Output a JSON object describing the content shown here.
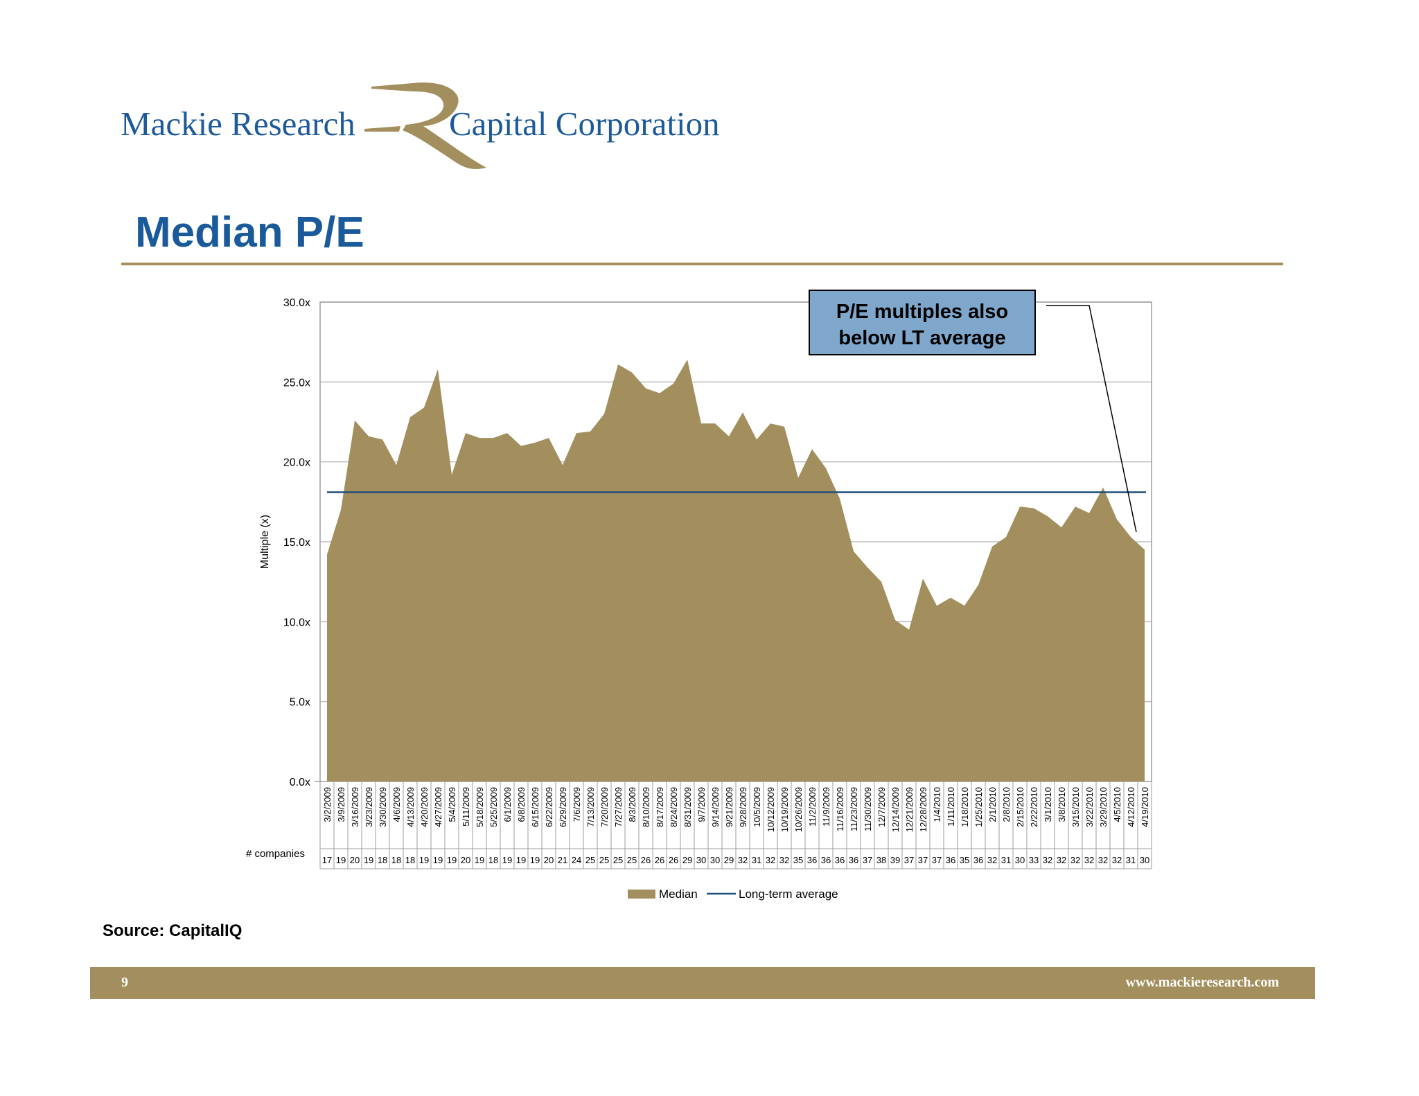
{
  "header": {
    "logo_left": "Mackie Research",
    "logo_right": "Capital Corporation",
    "brand_colors": {
      "text": "#1e5a9a",
      "mark": "#a38f5e"
    }
  },
  "page_title": "Median P/E",
  "source": "Source: CapitalIQ",
  "footer": {
    "page_number": "9",
    "website": "www.mackieresearch.com"
  },
  "chart_data": {
    "type": "area",
    "ylabel": "Multiple (x)",
    "ylim": [
      0,
      30
    ],
    "yticks": [
      "0.0x",
      "5.0x",
      "10.0x",
      "15.0x",
      "20.0x",
      "25.0x",
      "30.0x"
    ],
    "grid": true,
    "legend_position": "bottom",
    "annotation": "P/E multiples also below LT average",
    "companies_label": "# companies",
    "x": [
      "3/2/2009",
      "3/9/2009",
      "3/16/2009",
      "3/23/2009",
      "3/30/2009",
      "4/6/2009",
      "4/13/2009",
      "4/20/2009",
      "4/27/2009",
      "5/4/2009",
      "5/11/2009",
      "5/18/2009",
      "5/25/2009",
      "6/1/2009",
      "6/8/2009",
      "6/15/2009",
      "6/22/2009",
      "6/29/2009",
      "7/6/2009",
      "7/13/2009",
      "7/20/2009",
      "7/27/2009",
      "8/3/2009",
      "8/10/2009",
      "8/17/2009",
      "8/24/2009",
      "8/31/2009",
      "9/7/2009",
      "9/14/2009",
      "9/21/2009",
      "9/28/2009",
      "10/5/2009",
      "10/12/2009",
      "10/19/2009",
      "10/26/2009",
      "11/2/2009",
      "11/9/2009",
      "11/16/2009",
      "11/23/2009",
      "11/30/2009",
      "12/7/2009",
      "12/14/2009",
      "12/21/2009",
      "12/28/2009",
      "1/4/2010",
      "1/11/2010",
      "1/18/2010",
      "1/25/2010",
      "2/1/2010",
      "2/8/2010",
      "2/15/2010",
      "2/22/2010",
      "3/1/2010",
      "3/8/2010",
      "3/15/2010",
      "3/22/2010",
      "3/29/2010",
      "4/5/2010",
      "4/12/2010",
      "4/19/2010"
    ],
    "companies": [
      17,
      19,
      20,
      19,
      18,
      18,
      18,
      19,
      19,
      19,
      20,
      19,
      18,
      19,
      19,
      19,
      20,
      21,
      24,
      25,
      25,
      25,
      25,
      26,
      26,
      26,
      29,
      30,
      30,
      29,
      32,
      31,
      32,
      32,
      35,
      36,
      36,
      36,
      36,
      37,
      38,
      39,
      37,
      37,
      37,
      36,
      35,
      36,
      32,
      31,
      30,
      33,
      32,
      32,
      32,
      32,
      32,
      32,
      31,
      30
    ],
    "series": [
      {
        "name": "Median",
        "kind": "area",
        "color": "#a38f5e",
        "values": [
          14.2,
          17.0,
          22.6,
          21.6,
          21.4,
          19.8,
          22.8,
          23.4,
          25.8,
          19.2,
          21.8,
          21.5,
          21.5,
          21.8,
          21.0,
          21.2,
          21.5,
          19.8,
          21.8,
          21.9,
          23.0,
          26.1,
          25.6,
          24.6,
          24.3,
          24.9,
          26.4,
          22.4,
          22.4,
          21.6,
          23.1,
          21.4,
          22.4,
          22.2,
          19.0,
          20.8,
          19.6,
          17.7,
          14.4,
          13.4,
          12.5,
          10.1,
          9.5,
          12.7,
          11.0,
          11.5,
          11.0,
          12.3,
          14.7,
          15.3,
          17.2,
          17.1,
          16.6,
          15.9,
          17.2,
          16.8,
          18.4,
          16.4,
          15.3,
          14.5
        ]
      },
      {
        "name": "Long-term average",
        "kind": "line",
        "color": "#1f4e79",
        "value": 18.1
      }
    ]
  }
}
